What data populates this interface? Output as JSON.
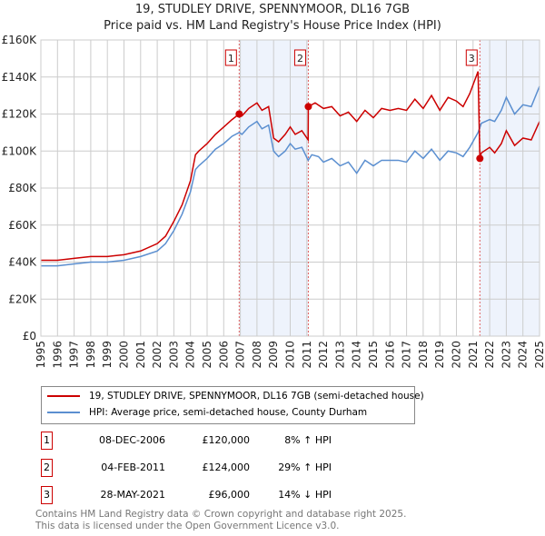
{
  "chart_data": {
    "type": "line",
    "title": "19, STUDLEY DRIVE, SPENNYMOOR, DL16 7GB",
    "subtitle": "Price paid vs. HM Land Registry's House Price Index (HPI)",
    "xlim": [
      1995,
      2025
    ],
    "ylim": [
      0,
      160000
    ],
    "x_ticks": [
      "1995",
      "1996",
      "1997",
      "1998",
      "1999",
      "2000",
      "2001",
      "2002",
      "2003",
      "2004",
      "2005",
      "2006",
      "2007",
      "2008",
      "2009",
      "2010",
      "2011",
      "2012",
      "2013",
      "2014",
      "2015",
      "2016",
      "2017",
      "2018",
      "2019",
      "2020",
      "2021",
      "2022",
      "2023",
      "2024",
      "2025"
    ],
    "y_ticks": [
      {
        "v": 0,
        "label": "£0"
      },
      {
        "v": 20000,
        "label": "£20K"
      },
      {
        "v": 40000,
        "label": "£40K"
      },
      {
        "v": 60000,
        "label": "£60K"
      },
      {
        "v": 80000,
        "label": "£80K"
      },
      {
        "v": 100000,
        "label": "£100K"
      },
      {
        "v": 120000,
        "label": "£120K"
      },
      {
        "v": 140000,
        "label": "£140K"
      },
      {
        "v": 160000,
        "label": "£160K"
      }
    ],
    "grid": true,
    "series": [
      {
        "name": "19, STUDLEY DRIVE, SPENNYMOOR, DL16 7GB (semi-detached house)",
        "color": "#cc0000",
        "points": [
          [
            1995,
            41
          ],
          [
            1996,
            41
          ],
          [
            1997,
            42
          ],
          [
            1998,
            43
          ],
          [
            1999,
            43
          ],
          [
            2000,
            44
          ],
          [
            2001,
            46
          ],
          [
            2002,
            50
          ],
          [
            2002.5,
            54
          ],
          [
            2003,
            62
          ],
          [
            2003.5,
            71
          ],
          [
            2004,
            84
          ],
          [
            2004.3,
            98
          ],
          [
            2004.5,
            100
          ],
          [
            2005,
            104
          ],
          [
            2005.5,
            109
          ],
          [
            2006,
            113
          ],
          [
            2006.5,
            117
          ],
          [
            2006.93,
            120
          ],
          [
            2007.1,
            119
          ],
          [
            2007.5,
            123
          ],
          [
            2008,
            126
          ],
          [
            2008.3,
            122
          ],
          [
            2008.7,
            124
          ],
          [
            2009,
            107
          ],
          [
            2009.3,
            105
          ],
          [
            2009.7,
            109
          ],
          [
            2010,
            113
          ],
          [
            2010.3,
            109
          ],
          [
            2010.7,
            111
          ],
          [
            2011.08,
            106
          ],
          [
            2011.09,
            124
          ],
          [
            2011.5,
            126
          ],
          [
            2012,
            123
          ],
          [
            2012.5,
            124
          ],
          [
            2013,
            119
          ],
          [
            2013.5,
            121
          ],
          [
            2014,
            116
          ],
          [
            2014.5,
            122
          ],
          [
            2015,
            118
          ],
          [
            2015.5,
            123
          ],
          [
            2016,
            122
          ],
          [
            2016.5,
            123
          ],
          [
            2017,
            122
          ],
          [
            2017.5,
            128
          ],
          [
            2018,
            123
          ],
          [
            2018.5,
            130
          ],
          [
            2019,
            122
          ],
          [
            2019.5,
            129
          ],
          [
            2020,
            127
          ],
          [
            2020.4,
            124
          ],
          [
            2020.8,
            131
          ],
          [
            2021.3,
            143
          ],
          [
            2021.41,
            96
          ],
          [
            2021.5,
            99
          ],
          [
            2022,
            102
          ],
          [
            2022.3,
            99
          ],
          [
            2022.7,
            104
          ],
          [
            2023,
            111
          ],
          [
            2023.5,
            103
          ],
          [
            2024,
            107
          ],
          [
            2024.5,
            106
          ],
          [
            2025,
            116
          ]
        ]
      },
      {
        "name": "HPI: Average price, semi-detached house, County Durham",
        "color": "#5b8fd0",
        "points": [
          [
            1995,
            38
          ],
          [
            1996,
            38
          ],
          [
            1997,
            39
          ],
          [
            1998,
            40
          ],
          [
            1999,
            40
          ],
          [
            2000,
            41
          ],
          [
            2001,
            43
          ],
          [
            2002,
            46
          ],
          [
            2002.5,
            50
          ],
          [
            2003,
            57
          ],
          [
            2003.5,
            66
          ],
          [
            2004,
            78
          ],
          [
            2004.3,
            90
          ],
          [
            2004.5,
            92
          ],
          [
            2005,
            96
          ],
          [
            2005.5,
            101
          ],
          [
            2006,
            104
          ],
          [
            2006.5,
            108
          ],
          [
            2006.93,
            110
          ],
          [
            2007.1,
            109
          ],
          [
            2007.5,
            113
          ],
          [
            2008,
            116
          ],
          [
            2008.3,
            112
          ],
          [
            2008.7,
            114
          ],
          [
            2009,
            100
          ],
          [
            2009.3,
            97
          ],
          [
            2009.7,
            100
          ],
          [
            2010,
            104
          ],
          [
            2010.3,
            101
          ],
          [
            2010.7,
            102
          ],
          [
            2011.08,
            95
          ],
          [
            2011.3,
            98
          ],
          [
            2011.7,
            97
          ],
          [
            2012,
            94
          ],
          [
            2012.5,
            96
          ],
          [
            2013,
            92
          ],
          [
            2013.5,
            94
          ],
          [
            2014,
            88
          ],
          [
            2014.5,
            95
          ],
          [
            2015,
            92
          ],
          [
            2015.5,
            95
          ],
          [
            2016,
            95
          ],
          [
            2016.5,
            95
          ],
          [
            2017,
            94
          ],
          [
            2017.5,
            100
          ],
          [
            2018,
            96
          ],
          [
            2018.5,
            101
          ],
          [
            2019,
            95
          ],
          [
            2019.5,
            100
          ],
          [
            2020,
            99
          ],
          [
            2020.4,
            97
          ],
          [
            2020.8,
            102
          ],
          [
            2021.3,
            110
          ],
          [
            2021.5,
            115
          ],
          [
            2022,
            117
          ],
          [
            2022.3,
            116
          ],
          [
            2022.7,
            122
          ],
          [
            2023,
            129
          ],
          [
            2023.5,
            120
          ],
          [
            2024,
            125
          ],
          [
            2024.5,
            124
          ],
          [
            2025,
            135
          ]
        ]
      }
    ],
    "annotations": [
      {
        "label": "1",
        "x": 2006.93,
        "y": 120
      },
      {
        "label": "2",
        "x": 2011.09,
        "y": 124
      },
      {
        "label": "3",
        "x": 2021.41,
        "y": 96
      }
    ],
    "legend_placement": "bottom"
  },
  "legend": {
    "property": "19, STUDLEY DRIVE, SPENNYMOOR, DL16 7GB (semi-detached house)",
    "hpi": "HPI: Average price, semi-detached house, County Durham"
  },
  "sales": [
    {
      "num": "1",
      "date": "08-DEC-2006",
      "price": "£120,000",
      "hpi": "8% ↑ HPI"
    },
    {
      "num": "2",
      "date": "04-FEB-2011",
      "price": "£124,000",
      "hpi": "29% ↑ HPI"
    },
    {
      "num": "3",
      "date": "28-MAY-2021",
      "price": "£96,000",
      "hpi": "14% ↓ HPI"
    }
  ],
  "footer": {
    "line1": "Contains HM Land Registry data © Crown copyright and database right 2025.",
    "line2": "This data is licensed under the Open Government Licence v3.0."
  }
}
